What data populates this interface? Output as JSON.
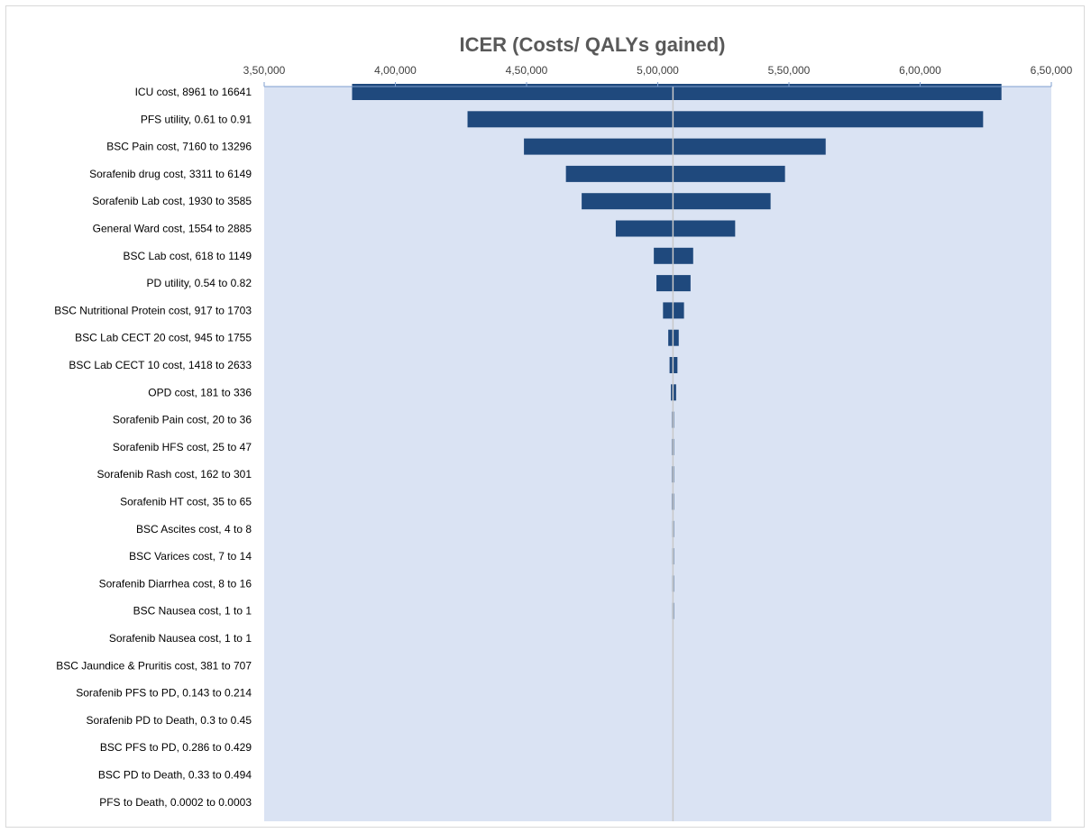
{
  "chart_data": {
    "type": "bar",
    "subtype": "tornado",
    "title": "ICER (Costs/ QALYs gained)",
    "xlim": [
      350000,
      650000
    ],
    "x_ticks": [
      350000,
      400000,
      450000,
      500000,
      550000,
      600000,
      650000
    ],
    "x_tick_labels": [
      "3,50,000",
      "4,00,000",
      "4,50,000",
      "5,00,000",
      "5,50,000",
      "6,00,000",
      "6,50,000"
    ],
    "x_axis_position": "top",
    "base_value": 505800,
    "plot_background": "#dae3f3",
    "bar_color": "#1f497d",
    "base_line_color": "#c8c8c8",
    "grid": false,
    "legend": "none",
    "categories": [
      "ICU cost,  8961 to 16641",
      "PFS utility,  0.61 to 0.91",
      "BSC Pain cost,  7160 to 13296",
      "Sorafenib drug cost,  3311 to 6149",
      "Sorafenib Lab cost,  1930 to 3585",
      "General Ward cost,  1554 to 2885",
      "BSC Lab cost,  618 to 1149",
      "PD utility,  0.54 to 0.82",
      "BSC Nutritional Protein cost,  917 to 1703",
      "BSC Lab CECT 20 cost,  945 to 1755",
      "BSC Lab CECT 10 cost,  1418 to 2633",
      "OPD cost,  181 to 336",
      "Sorafenib Pain cost,  20 to 36",
      "Sorafenib HFS cost,  25 to 47",
      "Sorafenib Rash cost,  162 to 301",
      "Sorafenib HT cost,  35 to 65",
      "BSC Ascites cost,  4 to 8",
      "BSC Varices cost,  7 to 14",
      "Sorafenib Diarrhea cost,  8 to 16",
      "BSC Nausea cost,  1 to 1",
      "Sorafenib Nausea cost,  1 to 1",
      "BSC Jaundice & Pruritis cost,  381 to 707",
      "Sorafenib PFS to PD,  0.143 to 0.214",
      "Sorafenib PD to Death,  0.3 to 0.45",
      "BSC PFS to PD,  0.286 to 0.429",
      "BSC PD to Death,  0.33 to 0.494",
      "PFS to Death,  0.0002 to 0.0003"
    ],
    "low_values": [
      383500,
      427500,
      449000,
      465000,
      471000,
      484000,
      498500,
      499500,
      502000,
      504000,
      504500,
      505000,
      505400,
      505400,
      505400,
      505400,
      505500,
      505500,
      505500,
      505500,
      505800,
      505800,
      505800,
      505800,
      505800,
      505800,
      505800
    ],
    "high_values": [
      631000,
      624000,
      564000,
      548500,
      543000,
      529500,
      513500,
      512500,
      510000,
      508000,
      507500,
      507000,
      506200,
      506200,
      506200,
      506200,
      506100,
      506100,
      506100,
      506100,
      505800,
      505800,
      505800,
      505800,
      505800,
      505800,
      505800
    ]
  }
}
